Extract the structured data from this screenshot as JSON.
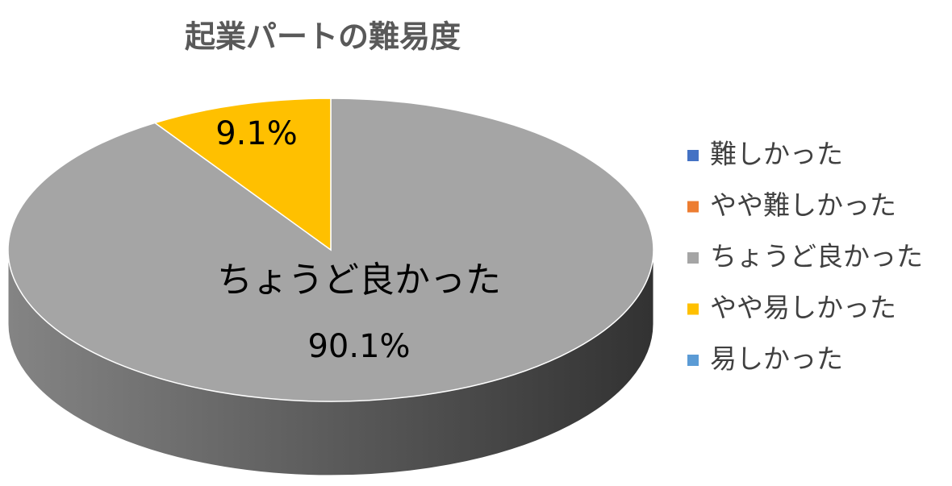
{
  "chart_data": {
    "type": "pie3d",
    "title": "起業パートの難易度",
    "categories": [
      "難しかった",
      "やや難しかった",
      "ちょうど良かった",
      "やや易しかった",
      "易しかった"
    ],
    "values": [
      0,
      0,
      90.1,
      9.1,
      0
    ],
    "value_labels": [
      null,
      null,
      "90.1%",
      "9.1%",
      null
    ],
    "colors": [
      "#4472c4",
      "#ed7d31",
      "#a5a5a5",
      "#ffc000",
      "#5b9bd5"
    ],
    "legend": "right"
  }
}
